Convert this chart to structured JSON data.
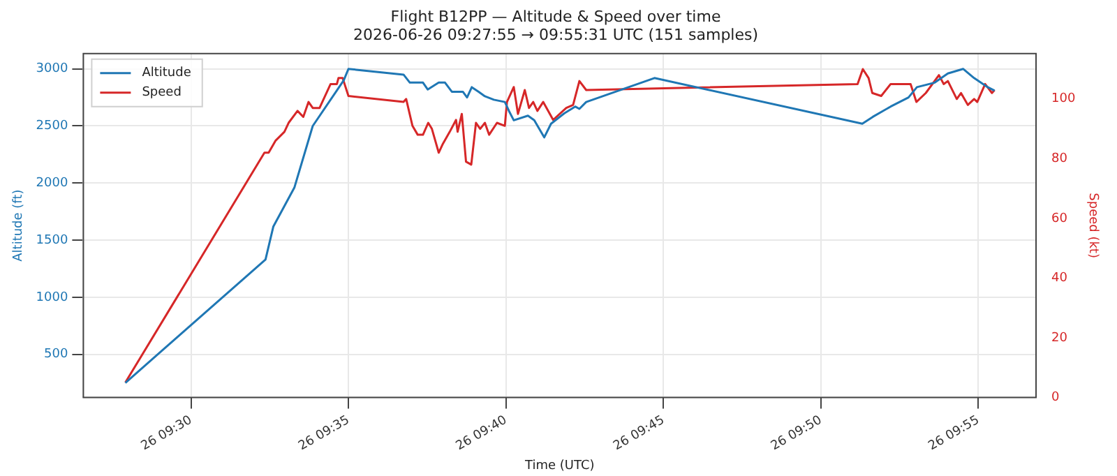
{
  "chart_data": {
    "type": "line",
    "title": "Flight B12PP — Altitude & Speed over time",
    "subtitle": "2026-06-26 09:27:55 → 09:55:31 UTC (151 samples)",
    "xlabel": "Time (UTC)",
    "ylabel": "Altitude (ft)",
    "y2label": "Speed (kt)",
    "xlim": [
      "2026-06-26T09:26:35",
      "2026-06-26T09:56:50"
    ],
    "xticks": [
      {
        "value": "2026-06-26T09:30",
        "label": "26 09:30"
      },
      {
        "value": "2026-06-26T09:35",
        "label": "26 09:35"
      },
      {
        "value": "2026-06-26T09:40",
        "label": "26 09:40"
      },
      {
        "value": "2026-06-26T09:45",
        "label": "26 09:45"
      },
      {
        "value": "2026-06-26T09:50",
        "label": "26 09:50"
      },
      {
        "value": "2026-06-26T09:55",
        "label": "26 09:55"
      }
    ],
    "ylim": [
      122,
      3134
    ],
    "yticks": [
      500,
      1000,
      1500,
      2000,
      2500,
      3000
    ],
    "y2lim": [
      0,
      115.2
    ],
    "y2ticks": [
      0,
      20,
      40,
      60,
      80,
      100
    ],
    "grid": true,
    "legend": "top left",
    "marker": "none",
    "line_style": "solid",
    "series": [
      {
        "name": "Altitude",
        "color": "#1f77b4",
        "x": [
          "2026-06-26T09:27:55",
          "2026-06-26T09:32:22",
          "2026-06-26T09:32:37",
          "2026-06-26T09:33:17",
          "2026-06-26T09:33:52",
          "2026-06-26T09:34:51",
          "2026-06-26T09:35:00",
          "2026-06-26T09:36:45",
          "2026-06-26T09:36:57",
          "2026-06-26T09:37:22",
          "2026-06-26T09:37:31",
          "2026-06-26T09:37:52",
          "2026-06-26T09:38:04",
          "2026-06-26T09:38:17",
          "2026-06-26T09:38:38",
          "2026-06-26T09:38:46",
          "2026-06-26T09:38:55",
          "2026-06-26T09:39:08",
          "2026-06-26T09:39:20",
          "2026-06-26T09:39:37",
          "2026-06-26T09:39:58",
          "2026-06-26T09:40:06",
          "2026-06-26T09:40:15",
          "2026-06-26T09:40:42",
          "2026-06-26T09:40:54",
          "2026-06-26T09:41:13",
          "2026-06-26T09:41:26",
          "2026-06-26T09:41:51",
          "2026-06-26T09:42:12",
          "2026-06-26T09:42:20",
          "2026-06-26T09:42:33",
          "2026-06-26T09:44:43",
          "2026-06-26T09:51:19",
          "2026-06-26T09:51:39",
          "2026-06-26T09:52:13",
          "2026-06-26T09:52:47",
          "2026-06-26T09:53:03",
          "2026-06-26T09:53:37",
          "2026-06-26T09:54:02",
          "2026-06-26T09:54:31",
          "2026-06-26T09:54:52",
          "2026-06-26T09:55:18",
          "2026-06-26T09:55:31"
        ],
        "values": [
          250,
          1330,
          1620,
          1960,
          2500,
          2900,
          3000,
          2950,
          2880,
          2880,
          2820,
          2880,
          2880,
          2800,
          2800,
          2750,
          2840,
          2800,
          2760,
          2730,
          2710,
          2630,
          2550,
          2590,
          2550,
          2400,
          2520,
          2610,
          2670,
          2650,
          2710,
          2920,
          2520,
          2580,
          2670,
          2750,
          2840,
          2880,
          2960,
          3000,
          2920,
          2840,
          2810
        ]
      },
      {
        "name": "Speed",
        "color": "#d62728",
        "axis": "y2",
        "x": [
          "2026-06-26T09:27:55",
          "2026-06-26T09:32:20",
          "2026-06-26T09:32:28",
          "2026-06-26T09:32:41",
          "2026-06-26T09:32:58",
          "2026-06-26T09:33:06",
          "2026-06-26T09:33:23",
          "2026-06-26T09:33:34",
          "2026-06-26T09:33:44",
          "2026-06-26T09:33:52",
          "2026-06-26T09:34:05",
          "2026-06-26T09:34:26",
          "2026-06-26T09:34:38",
          "2026-06-26T09:34:41",
          "2026-06-26T09:34:49",
          "2026-06-26T09:35:00",
          "2026-06-26T09:36:45",
          "2026-06-26T09:36:50",
          "2026-06-26T09:37:02",
          "2026-06-26T09:37:12",
          "2026-06-26T09:37:22",
          "2026-06-26T09:37:32",
          "2026-06-26T09:37:39",
          "2026-06-26T09:37:52",
          "2026-06-26T09:38:00",
          "2026-06-26T09:38:13",
          "2026-06-26T09:38:25",
          "2026-06-26T09:38:28",
          "2026-06-26T09:38:36",
          "2026-06-26T09:38:44",
          "2026-06-26T09:38:54",
          "2026-06-26T09:39:03",
          "2026-06-26T09:39:11",
          "2026-06-26T09:39:20",
          "2026-06-26T09:39:28",
          "2026-06-26T09:39:43",
          "2026-06-26T09:39:58",
          "2026-06-26T09:40:02",
          "2026-06-26T09:40:15",
          "2026-06-26T09:40:23",
          "2026-06-26T09:40:36",
          "2026-06-26T09:40:44",
          "2026-06-26T09:40:52",
          "2026-06-26T09:41:00",
          "2026-06-26T09:41:11",
          "2026-06-26T09:41:30",
          "2026-06-26T09:41:55",
          "2026-06-26T09:42:08",
          "2026-06-26T09:42:20",
          "2026-06-26T09:42:33",
          "2026-06-26T09:51:10",
          "2026-06-26T09:51:20",
          "2026-06-26T09:51:31",
          "2026-06-26T09:51:38",
          "2026-06-26T09:51:55",
          "2026-06-26T09:52:13",
          "2026-06-26T09:52:38",
          "2026-06-26T09:52:51",
          "2026-06-26T09:53:02",
          "2026-06-26T09:53:20",
          "2026-06-26T09:53:45",
          "2026-06-26T09:53:54",
          "2026-06-26T09:54:02",
          "2026-06-26T09:54:19",
          "2026-06-26T09:54:27",
          "2026-06-26T09:54:40",
          "2026-06-26T09:54:52",
          "2026-06-26T09:54:58",
          "2026-06-26T09:55:13",
          "2026-06-26T09:55:26",
          "2026-06-26T09:55:31"
        ],
        "values": [
          5,
          82,
          82,
          86,
          89,
          92,
          96,
          94,
          99,
          97,
          97,
          105,
          105,
          107,
          107,
          101,
          99,
          100,
          91,
          88,
          88,
          92,
          90,
          82,
          85,
          89,
          93,
          89,
          95,
          79,
          78,
          92,
          90,
          92,
          88,
          92,
          91,
          99,
          104,
          95,
          103,
          97,
          99,
          96,
          99,
          93,
          97,
          98,
          106,
          103,
          105,
          110,
          107,
          102,
          101,
          105,
          105,
          105,
          99,
          102,
          108,
          105,
          106,
          100,
          102,
          98,
          100,
          99,
          105,
          102,
          103
        ]
      }
    ]
  }
}
